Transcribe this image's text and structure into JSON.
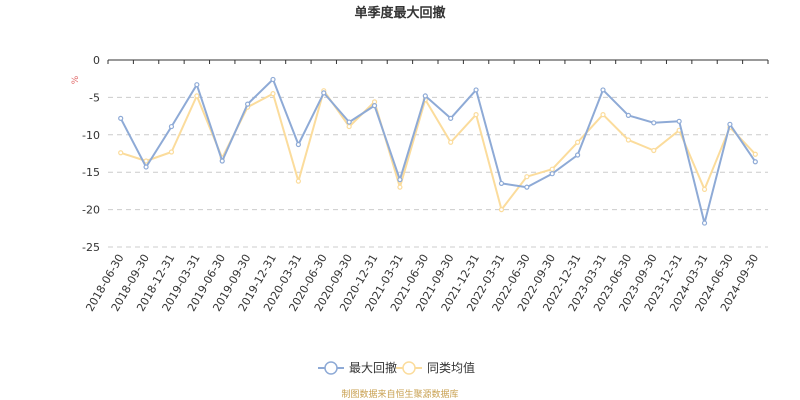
{
  "chart_data": {
    "type": "line",
    "title": "单季度最大回撤",
    "ylabel": "%",
    "xlabel": "",
    "ylim": [
      -25,
      0
    ],
    "yticks": [
      0,
      -5,
      -10,
      -15,
      -20,
      -25
    ],
    "grid": true,
    "legend_position": "bottom",
    "categories": [
      "2018-06-30",
      "2018-09-30",
      "2018-12-31",
      "2019-03-31",
      "2019-06-30",
      "2019-09-30",
      "2019-12-31",
      "2020-03-31",
      "2020-06-30",
      "2020-09-30",
      "2020-12-31",
      "2021-03-31",
      "2021-06-30",
      "2021-09-30",
      "2021-12-31",
      "2022-03-31",
      "2022-06-30",
      "2022-09-30",
      "2022-12-31",
      "2023-03-31",
      "2023-06-30",
      "2023-09-30",
      "2023-12-31",
      "2024-03-31",
      "2024-06-30",
      "2024-09-30"
    ],
    "series": [
      {
        "name": "最大回撤",
        "color": "#8eaad6",
        "values": [
          -7.8,
          -14.3,
          -8.9,
          -3.3,
          -13.5,
          -5.9,
          -2.6,
          -11.3,
          -4.4,
          -8.3,
          -6.1,
          -16.0,
          -4.8,
          -7.8,
          -4.0,
          -16.5,
          -17.0,
          -15.2,
          -12.7,
          -4.0,
          -7.4,
          -8.4,
          -8.2,
          -21.8,
          -8.6,
          -13.6
        ]
      },
      {
        "name": "同类均值",
        "color": "#fbdc9c",
        "values": [
          -12.4,
          -13.5,
          -12.3,
          -4.8,
          -13.1,
          -6.3,
          -4.5,
          -16.2,
          -4.1,
          -8.9,
          -5.6,
          -17.0,
          -5.3,
          -11.0,
          -7.3,
          -20.0,
          -15.6,
          -14.6,
          -11.0,
          -7.3,
          -10.7,
          -12.1,
          -9.4,
          -17.3,
          -9.0,
          -12.6
        ]
      }
    ]
  },
  "footer": {
    "source": "制图数据来自恒生聚源数据库"
  }
}
